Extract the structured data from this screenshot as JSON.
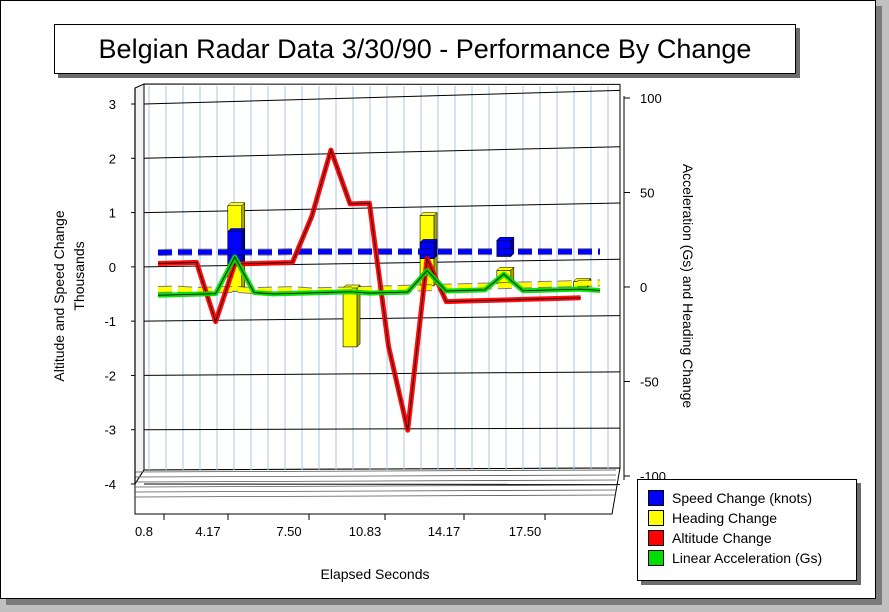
{
  "chart_data": {
    "type": "bar",
    "title": "Belgian Radar Data 3/30/90 - Performance By Change",
    "xlabel": "Elapsed Seconds",
    "ylabel": "Altitude and Speed Change",
    "ylabel_units": "Thousands",
    "y2label": "Acceleration (Gs) and Heading Change",
    "ylim": [
      -4,
      3
    ],
    "y2lim": [
      -100,
      100
    ],
    "yticks": [
      "3",
      "2",
      "1",
      "0",
      "-1",
      "-2",
      "-3",
      "-4"
    ],
    "y2ticks": [
      "100",
      "50",
      "0",
      "-50",
      "-100"
    ],
    "xticks": [
      "0.8",
      "4.17",
      "7.50",
      "10.83",
      "14.17",
      "17.50"
    ],
    "x": [
      0.8,
      1.63,
      2.47,
      3.3,
      4.13,
      4.97,
      5.8,
      6.63,
      7.47,
      8.3,
      9.13,
      9.97,
      10.8,
      11.63,
      12.47,
      13.3,
      14.13,
      14.97,
      15.8,
      16.63,
      17.47,
      18.3,
      19.13,
      19.97
    ],
    "series": [
      {
        "name": "Speed Change (knots)",
        "axis": "left",
        "render": "dashed-line",
        "values": [
          0.25,
          0.25,
          0.24,
          0.23,
          0.22,
          0.21,
          0.2,
          0.2,
          0.19,
          0.18,
          0.17,
          0.16,
          0.15,
          0.14,
          0.13,
          0.12,
          0.11,
          0.1,
          0.09,
          0.08,
          0.07,
          0.06,
          0.05,
          0.04
        ]
      },
      {
        "name": "Speed Change (knots)",
        "axis": "left",
        "render": "bar",
        "values": [
          null,
          null,
          null,
          null,
          0.6,
          null,
          null,
          null,
          null,
          null,
          null,
          null,
          null,
          null,
          0.3,
          null,
          null,
          null,
          0.3,
          null,
          null,
          null,
          null,
          null
        ]
      },
      {
        "name": "Heading Change",
        "axis": "right",
        "render": "bar",
        "values": [
          null,
          null,
          null,
          null,
          45,
          null,
          null,
          null,
          null,
          null,
          -31,
          null,
          null,
          null,
          37,
          null,
          null,
          null,
          7,
          null,
          null,
          null,
          -3,
          null
        ]
      },
      {
        "name": "Heading Change",
        "axis": "right",
        "render": "dashed-line",
        "values": [
          2,
          2,
          1,
          1,
          1,
          0,
          0,
          0,
          -1,
          -1,
          -1,
          -1,
          -1,
          -1,
          -1,
          -1,
          -1,
          -1,
          -1,
          -1,
          -1,
          -1,
          -1,
          -1
        ]
      },
      {
        "name": "Altitude Change",
        "axis": "left",
        "render": "thick-line",
        "values": [
          0.05,
          0.05,
          0.05,
          -1.05,
          0.0,
          0.0,
          0.0,
          0.0,
          0.84,
          2.05,
          1.05,
          1.05,
          -1.6,
          -3.15,
          0.0,
          -0.8,
          -0.8,
          -0.8,
          -0.8,
          -0.8,
          -0.8,
          -0.8,
          -0.8,
          null
        ]
      },
      {
        "name": "Linear Acceleration (Gs)",
        "axis": "right",
        "render": "thick-line",
        "values": [
          -1,
          -1,
          -1,
          -1,
          18,
          -1,
          -2,
          -2,
          -2,
          -2,
          -2,
          -3,
          -3,
          -3,
          8,
          -3,
          -3,
          -3,
          5,
          -4,
          -4,
          -4,
          -4,
          -5
        ]
      }
    ],
    "legend_position": "bottom-right",
    "grid": true
  }
}
